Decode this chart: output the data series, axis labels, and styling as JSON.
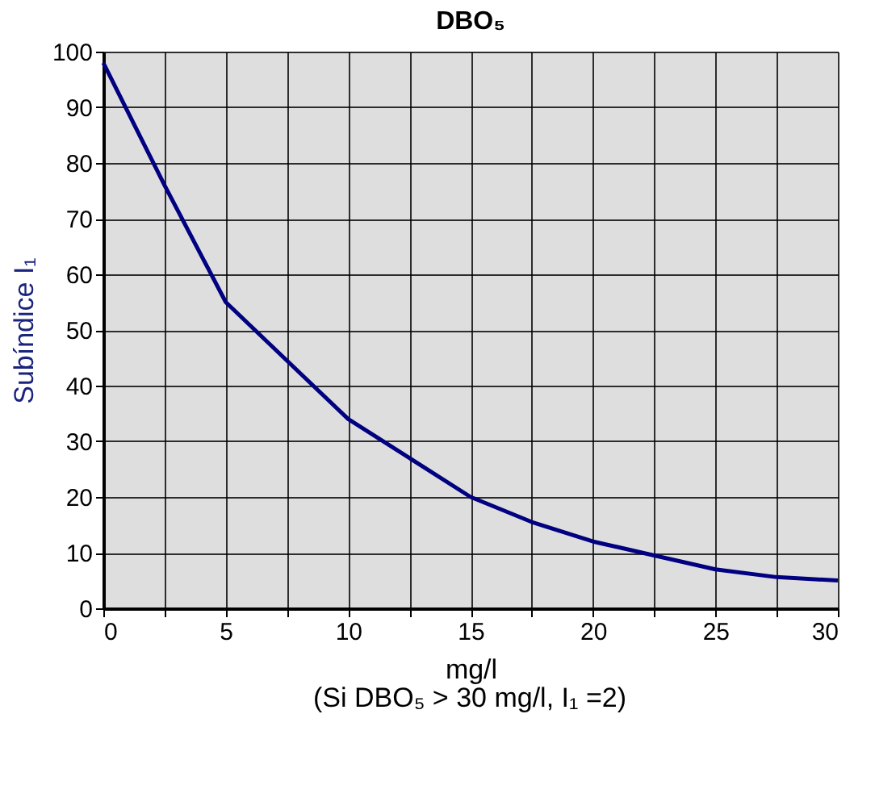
{
  "chart_data": {
    "type": "line",
    "title": "DBO₅",
    "xlabel": "mg/l",
    "ylabel": "Subíndice I₁",
    "annotations": [
      "(Si DBO₅ > 30 mg/l, I₁ =2)"
    ],
    "x": [
      0,
      2.5,
      5,
      7.5,
      10,
      12.5,
      15,
      17.5,
      20,
      22.5,
      25,
      27.5,
      30
    ],
    "series": [
      {
        "color": "#000080",
        "values": [
          98,
          76,
          55,
          44.5,
          34,
          27,
          20,
          15.5,
          12,
          9.5,
          7,
          5.6,
          5
        ]
      }
    ],
    "xlim": [
      0,
      30
    ],
    "ylim": [
      0,
      100
    ],
    "xticks": [
      0,
      {
        "value": 2.5,
        "label": null
      },
      5,
      {
        "value": 7.5,
        "label": null
      },
      10,
      {
        "value": 12.5,
        "label": null
      },
      15,
      {
        "value": 17.5,
        "label": null
      },
      20,
      {
        "value": 22.5,
        "label": null
      },
      25,
      {
        "value": 27.5,
        "label": null
      },
      30
    ],
    "yticks": [
      0,
      10,
      20,
      30,
      40,
      50,
      60,
      70,
      80,
      90,
      100
    ],
    "grid": true,
    "marker": "none",
    "line_style": "solid"
  }
}
